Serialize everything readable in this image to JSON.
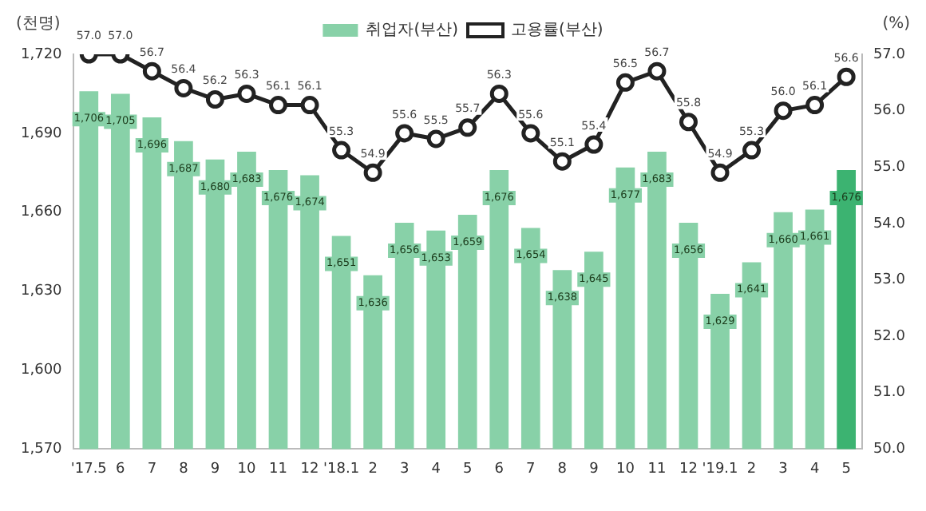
{
  "chart_data": {
    "type": "bar",
    "ylabel": "(천명)",
    "y2label": "(%)",
    "categories": [
      "'17.5",
      "6",
      "7",
      "8",
      "9",
      "10",
      "11",
      "12",
      "'18.1",
      "2",
      "3",
      "4",
      "5",
      "6",
      "7",
      "8",
      "9",
      "10",
      "11",
      "12",
      "'19.1",
      "2",
      "3",
      "4",
      "5"
    ],
    "series": [
      {
        "name": "취업자(부산)",
        "colors": [
          "#88d1a8",
          "#88d1a8",
          "#88d1a8",
          "#88d1a8",
          "#88d1a8",
          "#88d1a8",
          "#88d1a8",
          "#88d1a8",
          "#88d1a8",
          "#88d1a8",
          "#88d1a8",
          "#88d1a8",
          "#88d1a8",
          "#88d1a8",
          "#88d1a8",
          "#88d1a8",
          "#88d1a8",
          "#88d1a8",
          "#88d1a8",
          "#88d1a8",
          "#88d1a8",
          "#88d1a8",
          "#88d1a8",
          "#88d1a8",
          "#3cb371"
        ],
        "values": [
          1706,
          1705,
          1696,
          1687,
          1680,
          1683,
          1676,
          1674,
          1651,
          1636,
          1656,
          1653,
          1659,
          1676,
          1654,
          1638,
          1645,
          1677,
          1683,
          1656,
          1629,
          1641,
          1660,
          1661,
          1676
        ],
        "value_labels": [
          "1,706",
          "1,705",
          "1,696",
          "1,687",
          "1,680",
          "1,683",
          "1,676",
          "1,674",
          "1,651",
          "1,636",
          "1,656",
          "1,653",
          "1,659",
          "1,676",
          "1,654",
          "1,638",
          "1,645",
          "1,677",
          "1,683",
          "1,656",
          "1,629",
          "1,641",
          "1,660",
          "1,661",
          "1,676"
        ]
      },
      {
        "name": "고용률(부산)",
        "type": "line",
        "axis": "y2",
        "color": "#222222",
        "values": [
          57.0,
          57.0,
          56.7,
          56.4,
          56.2,
          56.3,
          56.1,
          56.1,
          55.3,
          54.9,
          55.6,
          55.5,
          55.7,
          56.3,
          55.6,
          55.1,
          55.4,
          56.5,
          56.7,
          55.8,
          54.9,
          55.3,
          56.0,
          56.1,
          56.6
        ],
        "value_labels": [
          "57.0",
          "57.0",
          "56.7",
          "56.4",
          "56.2",
          "56.3",
          "56.1",
          "56.1",
          "55.3",
          "54.9",
          "55.6",
          "55.5",
          "55.7",
          "56.3",
          "55.6",
          "55.1",
          "55.4",
          "56.5",
          "56.7",
          "55.8",
          "54.9",
          "55.3",
          "56.0",
          "56.1",
          "56.6"
        ]
      }
    ],
    "ylim": [
      1570,
      1720
    ],
    "yticks": [
      {
        "value": 1570,
        "label": "1,570"
      },
      {
        "value": 1600,
        "label": "1,600"
      },
      {
        "value": 1630,
        "label": "1,630"
      },
      {
        "value": 1660,
        "label": "1,660"
      },
      {
        "value": 1690,
        "label": "1,690"
      },
      {
        "value": 1720,
        "label": "1,720"
      }
    ],
    "y2lim": [
      50,
      57
    ],
    "y2ticks": [
      {
        "value": 50,
        "label": "50.0"
      },
      {
        "value": 51,
        "label": "51.0"
      },
      {
        "value": 52,
        "label": "52.0"
      },
      {
        "value": 53,
        "label": "53.0"
      },
      {
        "value": 54,
        "label": "54.0"
      },
      {
        "value": 55,
        "label": "55.0"
      },
      {
        "value": 56,
        "label": "56.0"
      },
      {
        "value": 57,
        "label": "57.0"
      }
    ],
    "legend": "top",
    "marker": "circle",
    "line_style": "solid"
  }
}
